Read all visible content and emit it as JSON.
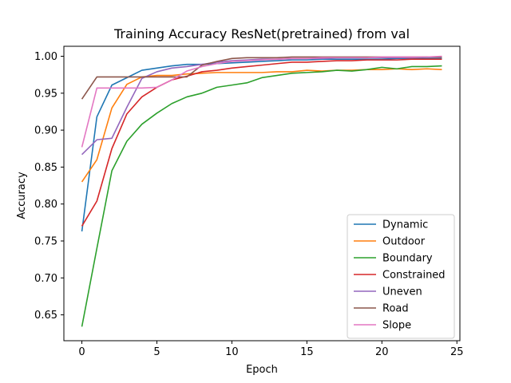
{
  "chart_data": {
    "type": "line",
    "title": "Training Accuracy ResNet(pretrained) from val",
    "xlabel": "Epoch",
    "ylabel": "Accuracy",
    "xlim": [
      -1.2,
      25.2
    ],
    "ylim": [
      0.615,
      1.0135
    ],
    "x_ticks": [
      0,
      5,
      10,
      15,
      20,
      25
    ],
    "y_ticks": [
      0.65,
      0.7,
      0.75,
      0.8,
      0.85,
      0.9,
      0.95,
      1.0
    ],
    "x_tick_labels": [
      "0",
      "5",
      "10",
      "15",
      "20",
      "25"
    ],
    "y_tick_labels": [
      "0.65",
      "0.70",
      "0.75",
      "0.80",
      "0.85",
      "0.90",
      "0.95",
      "1.00"
    ],
    "grid": false,
    "legend_position": "lower-right",
    "x": [
      0,
      1,
      2,
      3,
      4,
      5,
      6,
      7,
      8,
      9,
      10,
      11,
      12,
      13,
      14,
      15,
      16,
      17,
      18,
      19,
      20,
      21,
      22,
      23,
      24
    ],
    "series": [
      {
        "name": "Dynamic",
        "color": "#1f77b4",
        "values": [
          0.763,
          0.918,
          0.961,
          0.971,
          0.981,
          0.984,
          0.987,
          0.989,
          0.989,
          0.99,
          0.991,
          0.992,
          0.993,
          0.994,
          0.995,
          0.995,
          0.996,
          0.996,
          0.996,
          0.996,
          0.996,
          0.997,
          0.997,
          0.997,
          0.997
        ]
      },
      {
        "name": "Outdoor",
        "color": "#ff7f0e",
        "values": [
          0.83,
          0.86,
          0.93,
          0.962,
          0.972,
          0.974,
          0.974,
          0.976,
          0.977,
          0.978,
          0.978,
          0.978,
          0.978,
          0.979,
          0.979,
          0.981,
          0.98,
          0.981,
          0.981,
          0.982,
          0.982,
          0.983,
          0.982,
          0.983,
          0.982
        ]
      },
      {
        "name": "Boundary",
        "color": "#2ca02c",
        "values": [
          0.634,
          0.74,
          0.845,
          0.885,
          0.908,
          0.923,
          0.936,
          0.945,
          0.95,
          0.958,
          0.961,
          0.964,
          0.971,
          0.974,
          0.977,
          0.978,
          0.979,
          0.981,
          0.98,
          0.982,
          0.985,
          0.983,
          0.986,
          0.986,
          0.987
        ]
      },
      {
        "name": "Constrained",
        "color": "#d62728",
        "values": [
          0.77,
          0.804,
          0.875,
          0.922,
          0.945,
          0.958,
          0.968,
          0.973,
          0.979,
          0.981,
          0.984,
          0.986,
          0.988,
          0.99,
          0.992,
          0.992,
          0.993,
          0.994,
          0.994,
          0.995,
          0.995,
          0.995,
          0.996,
          0.996,
          0.996
        ]
      },
      {
        "name": "Uneven",
        "color": "#9467bd",
        "values": [
          0.867,
          0.887,
          0.889,
          0.931,
          0.97,
          0.979,
          0.984,
          0.986,
          0.989,
          0.992,
          0.994,
          0.995,
          0.996,
          0.996,
          0.997,
          0.997,
          0.997,
          0.998,
          0.998,
          0.998,
          0.998,
          0.998,
          0.998,
          0.999,
          0.999
        ]
      },
      {
        "name": "Road",
        "color": "#8c564b",
        "values": [
          0.942,
          0.972,
          0.972,
          0.972,
          0.972,
          0.972,
          0.972,
          0.972,
          0.988,
          0.993,
          0.997,
          0.998,
          0.998,
          0.998,
          0.999,
          0.999,
          0.999,
          0.999,
          0.999,
          0.999,
          0.999,
          0.999,
          0.999,
          0.999,
          0.999
        ]
      },
      {
        "name": "Slope",
        "color": "#e377c2",
        "values": [
          0.877,
          0.957,
          0.957,
          0.957,
          0.957,
          0.958,
          0.968,
          0.98,
          0.986,
          0.99,
          0.993,
          0.994,
          0.995,
          0.996,
          0.997,
          0.997,
          0.998,
          0.998,
          0.998,
          0.998,
          0.999,
          0.999,
          0.999,
          0.999,
          1.0
        ]
      }
    ]
  }
}
